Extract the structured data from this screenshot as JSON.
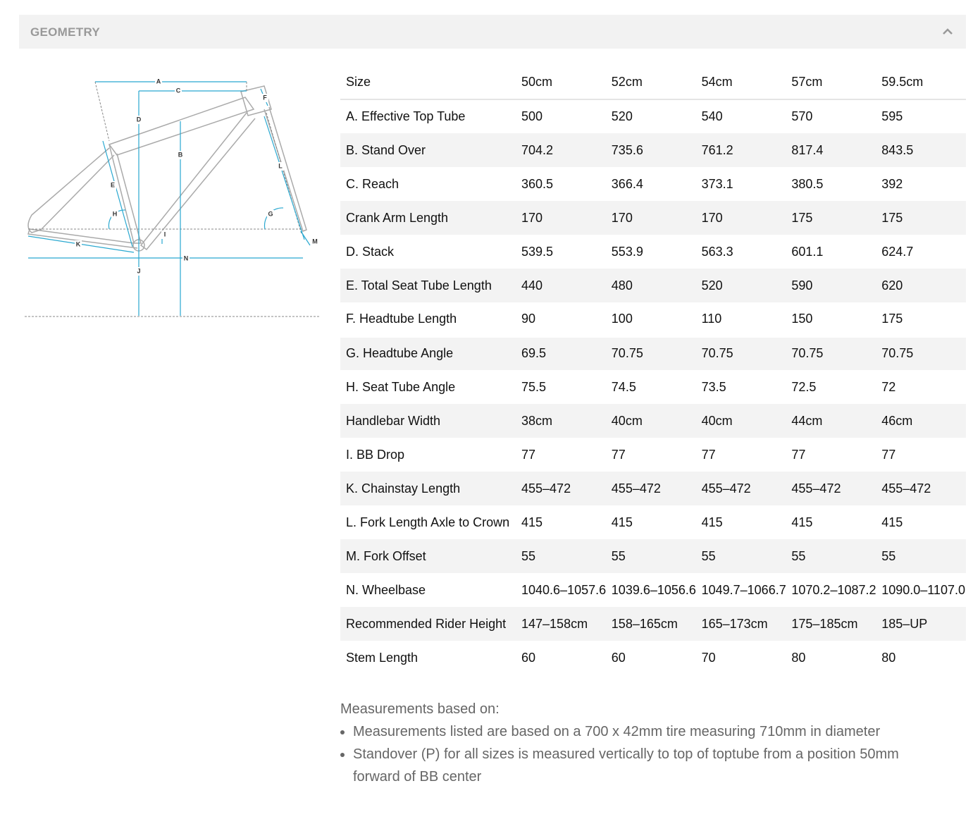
{
  "header": {
    "title": "GEOMETRY"
  },
  "diagram": {
    "labels": [
      "A",
      "C",
      "F",
      "D",
      "B",
      "L",
      "E",
      "H",
      "G",
      "I",
      "M",
      "K",
      "J",
      "N"
    ]
  },
  "table": {
    "header": [
      "Size",
      "50cm",
      "52cm",
      "54cm",
      "57cm",
      "59.5cm"
    ],
    "rows": [
      [
        "A. Effective Top Tube",
        "500",
        "520",
        "540",
        "570",
        "595"
      ],
      [
        "B. Stand Over",
        "704.2",
        "735.6",
        "761.2",
        "817.4",
        "843.5"
      ],
      [
        "C. Reach",
        "360.5",
        "366.4",
        "373.1",
        "380.5",
        "392"
      ],
      [
        "Crank Arm Length",
        "170",
        "170",
        "170",
        "175",
        "175"
      ],
      [
        "D. Stack",
        "539.5",
        "553.9",
        "563.3",
        "601.1",
        "624.7"
      ],
      [
        "E. Total Seat Tube Length",
        "440",
        "480",
        "520",
        "590",
        "620"
      ],
      [
        "F. Headtube Length",
        "90",
        "100",
        "110",
        "150",
        "175"
      ],
      [
        "G. Headtube Angle",
        "69.5",
        "70.75",
        "70.75",
        "70.75",
        "70.75"
      ],
      [
        "H. Seat Tube Angle",
        "75.5",
        "74.5",
        "73.5",
        "72.5",
        "72"
      ],
      [
        "Handlebar Width",
        "38cm",
        "40cm",
        "40cm",
        "44cm",
        "46cm"
      ],
      [
        "I. BB Drop",
        "77",
        "77",
        "77",
        "77",
        "77"
      ],
      [
        "K. Chainstay Length",
        "455–472",
        "455–472",
        "455–472",
        "455–472",
        "455–472"
      ],
      [
        "L. Fork Length Axle to Crown",
        "415",
        "415",
        "415",
        "415",
        "415"
      ],
      [
        "M. Fork Offset",
        "55",
        "55",
        "55",
        "55",
        "55"
      ],
      [
        "N. Wheelbase",
        "1040.6–1057.6",
        "1039.6–1056.6",
        "1049.7–1066.7",
        "1070.2–1087.2",
        "1090.0–1107.0"
      ],
      [
        "Recommended Rider Height",
        "147–158cm",
        "158–165cm",
        "165–173cm",
        "175–185cm",
        "185–UP"
      ],
      [
        "Stem Length",
        "60",
        "60",
        "70",
        "80",
        "80"
      ]
    ]
  },
  "notes": {
    "title": "Measurements based on:",
    "items": [
      "Measurements listed are based on a 700 x 42mm tire measuring 710mm in diameter",
      "Standover (P) for all sizes is measured vertically to top of toptube from a position 50mm forward of BB center"
    ]
  }
}
